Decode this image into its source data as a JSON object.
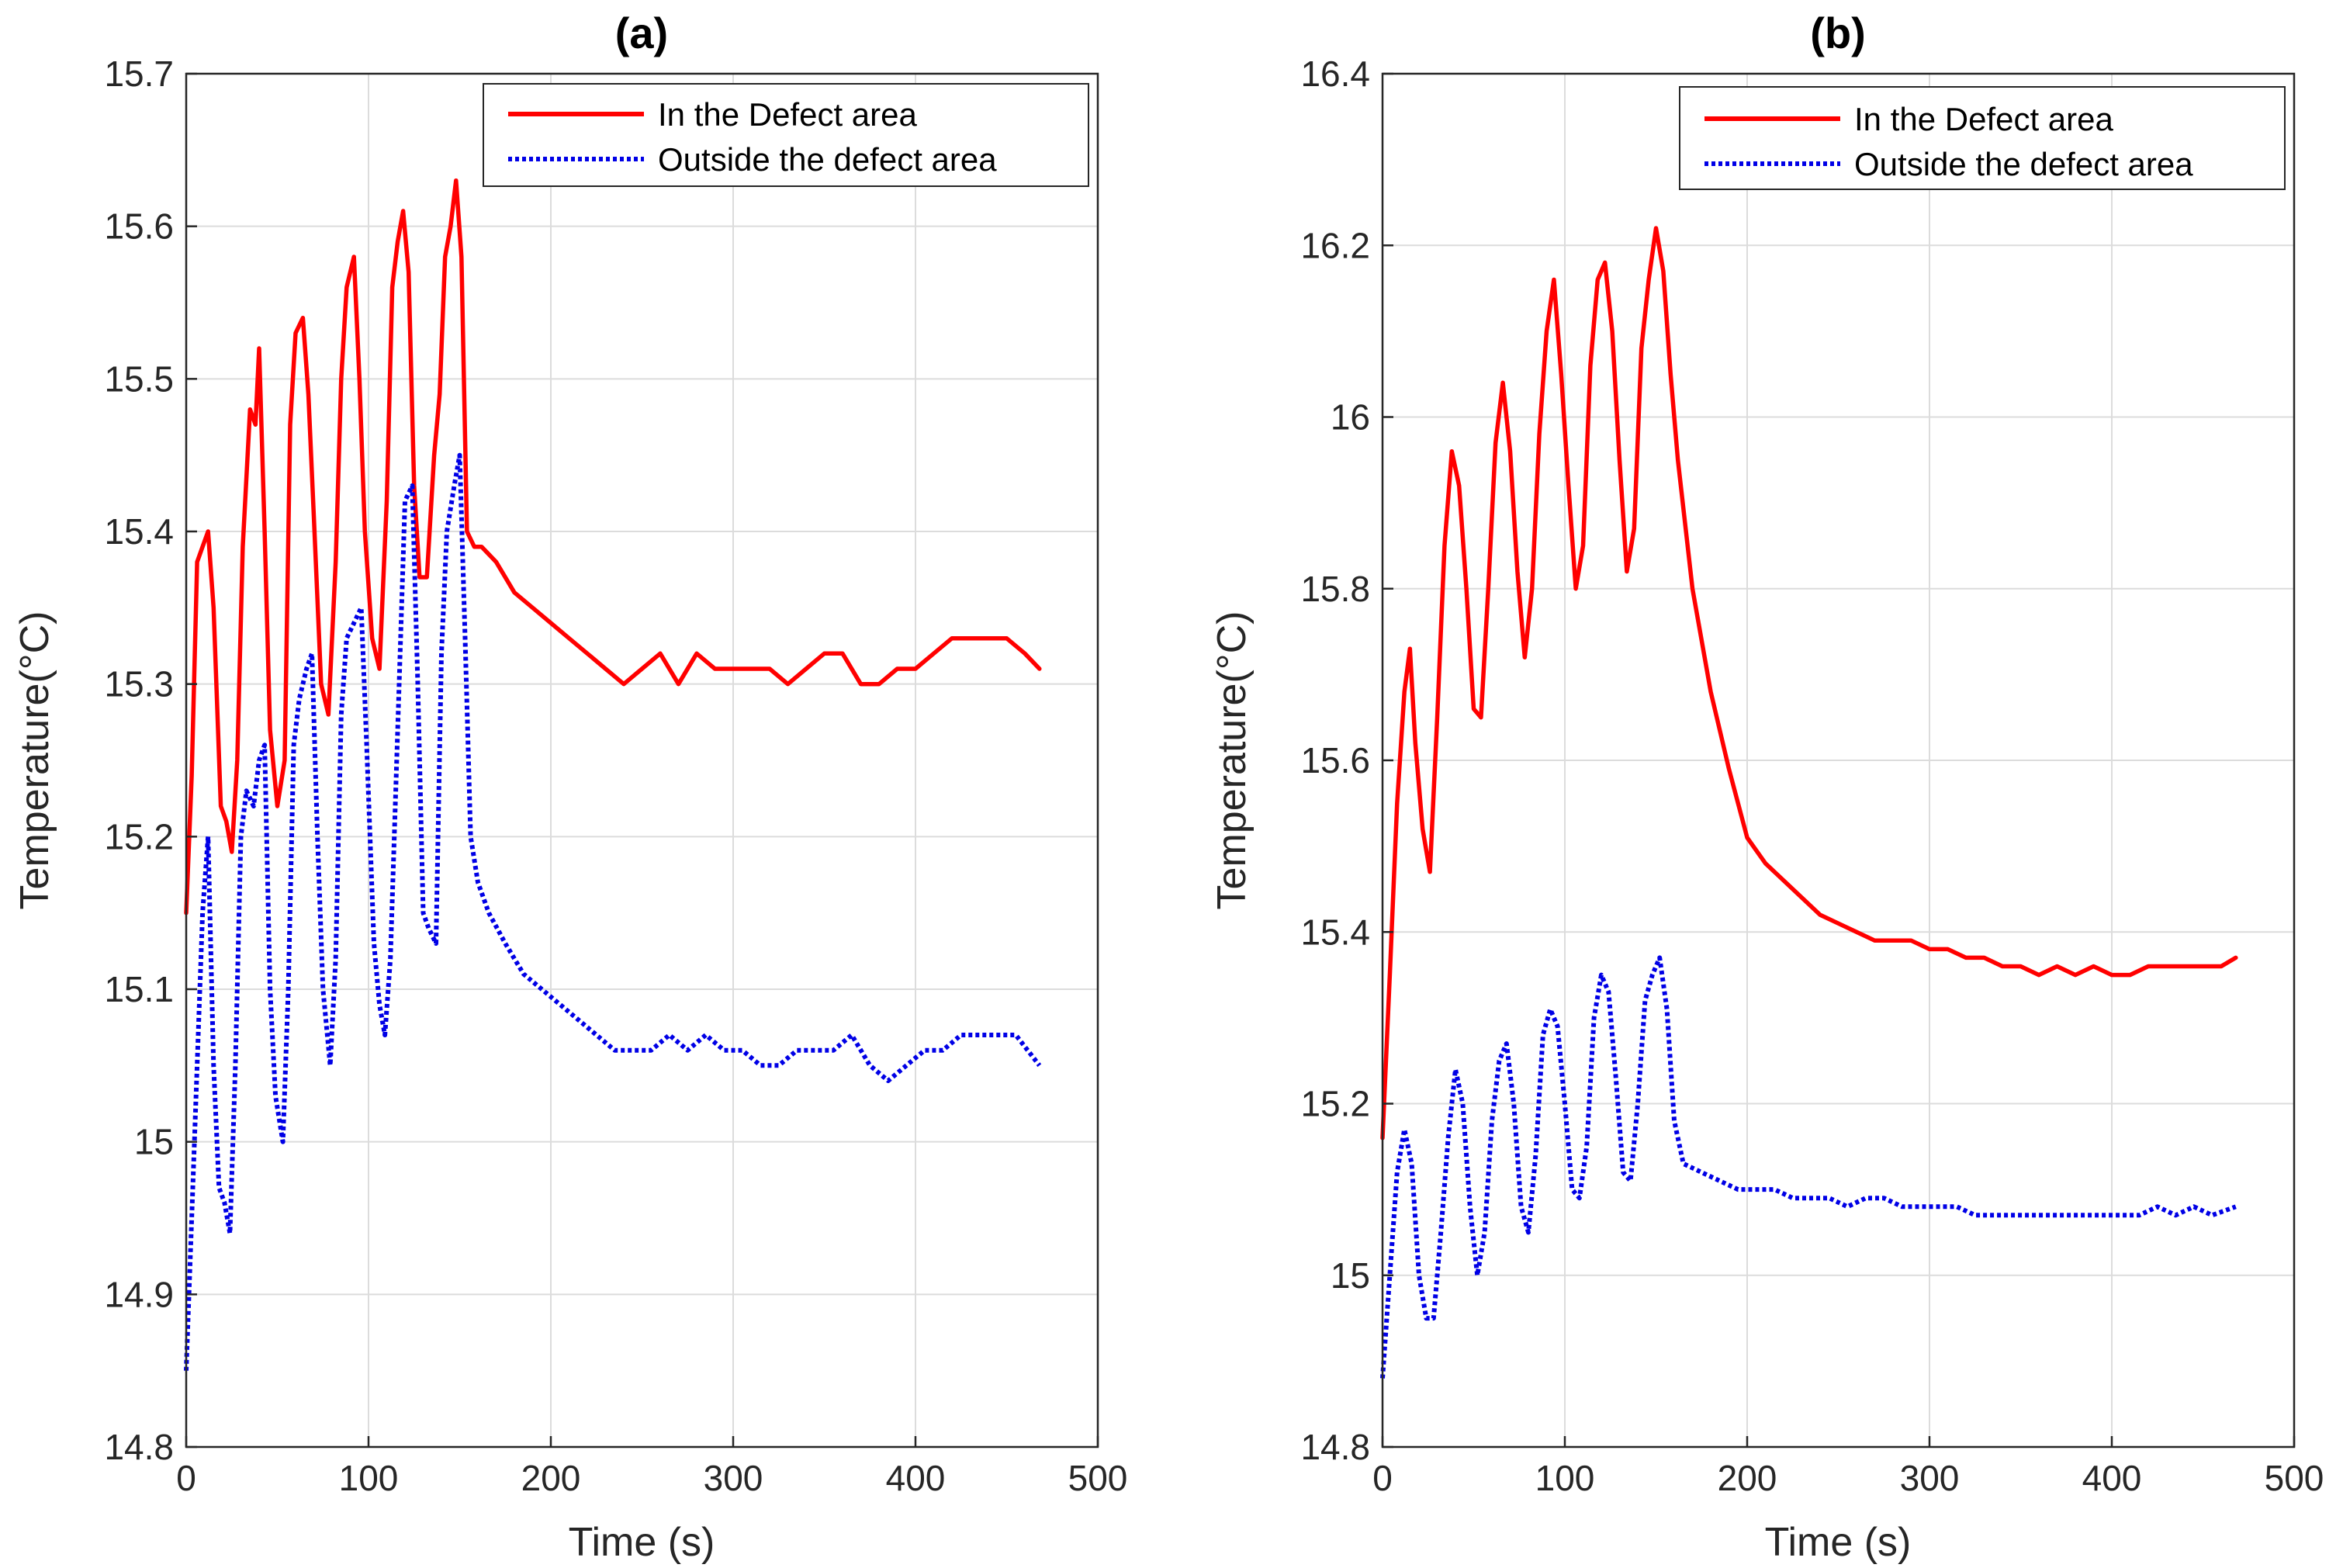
{
  "chart_data": [
    {
      "type": "line",
      "title": "(a)",
      "xlabel": "Time (s)",
      "ylabel": "Temperature(°C)",
      "xlim": [
        0,
        500
      ],
      "ylim": [
        14.8,
        15.7
      ],
      "xticks": [
        "0",
        "100",
        "200",
        "300",
        "400",
        "500"
      ],
      "yticks": [
        "14.8",
        "14.9",
        "15",
        "15.1",
        "15.2",
        "15.3",
        "15.4",
        "15.5",
        "15.6",
        "15.7"
      ],
      "grid": true,
      "legend_position": "top-right",
      "series": [
        {
          "name": "In the Defect area",
          "color": "#ff0000",
          "style": "solid",
          "x": [
            0,
            3,
            6,
            9,
            12,
            15,
            19,
            22,
            25,
            28,
            31,
            35,
            38,
            40,
            43,
            46,
            50,
            54,
            57,
            60,
            64,
            67,
            70,
            74,
            78,
            82,
            85,
            88,
            92,
            95,
            98,
            102,
            106,
            110,
            113,
            116,
            119,
            122,
            125,
            128,
            132,
            136,
            139,
            142,
            145,
            148,
            151,
            154,
            158,
            162,
            170,
            180,
            190,
            200,
            210,
            220,
            230,
            240,
            250,
            260,
            270,
            280,
            290,
            300,
            310,
            320,
            330,
            340,
            350,
            360,
            370,
            380,
            390,
            400,
            410,
            420,
            430,
            440,
            450,
            460,
            468
          ],
          "y": [
            15.15,
            15.24,
            15.38,
            15.39,
            15.4,
            15.35,
            15.22,
            15.21,
            15.19,
            15.25,
            15.39,
            15.48,
            15.47,
            15.52,
            15.4,
            15.27,
            15.22,
            15.25,
            15.47,
            15.53,
            15.54,
            15.49,
            15.41,
            15.3,
            15.28,
            15.38,
            15.5,
            15.56,
            15.58,
            15.5,
            15.4,
            15.33,
            15.31,
            15.42,
            15.56,
            15.59,
            15.61,
            15.57,
            15.43,
            15.37,
            15.37,
            15.45,
            15.49,
            15.58,
            15.6,
            15.63,
            15.58,
            15.4,
            15.39,
            15.39,
            15.38,
            15.36,
            15.35,
            15.34,
            15.33,
            15.32,
            15.31,
            15.3,
            15.31,
            15.32,
            15.3,
            15.32,
            15.31,
            15.31,
            15.31,
            15.31,
            15.3,
            15.31,
            15.32,
            15.32,
            15.3,
            15.3,
            15.31,
            15.31,
            15.32,
            15.33,
            15.33,
            15.33,
            15.33,
            15.32,
            15.31
          ]
        },
        {
          "name": "Outside the defect area",
          "color": "#0000e6",
          "style": "dotted",
          "x": [
            0,
            3,
            6,
            9,
            12,
            15,
            18,
            21,
            24,
            27,
            30,
            33,
            37,
            40,
            43,
            46,
            49,
            53,
            56,
            59,
            62,
            66,
            69,
            72,
            75,
            79,
            82,
            85,
            88,
            92,
            96,
            99,
            103,
            106,
            109,
            112,
            116,
            120,
            124,
            127,
            130,
            133,
            137,
            140,
            143,
            147,
            150,
            153,
            156,
            160,
            166,
            175,
            185,
            195,
            205,
            215,
            225,
            235,
            245,
            255,
            265,
            275,
            285,
            295,
            305,
            315,
            325,
            335,
            345,
            355,
            365,
            375,
            385,
            395,
            405,
            415,
            425,
            435,
            445,
            455,
            468
          ],
          "y": [
            14.85,
            14.95,
            15.05,
            15.15,
            15.2,
            15.05,
            14.97,
            14.96,
            14.94,
            15.05,
            15.2,
            15.23,
            15.22,
            15.25,
            15.26,
            15.1,
            15.03,
            15.0,
            15.1,
            15.26,
            15.29,
            15.31,
            15.32,
            15.2,
            15.1,
            15.05,
            15.12,
            15.28,
            15.33,
            15.34,
            15.35,
            15.26,
            15.13,
            15.09,
            15.07,
            15.12,
            15.27,
            15.42,
            15.43,
            15.3,
            15.15,
            15.14,
            15.13,
            15.32,
            15.4,
            15.43,
            15.45,
            15.33,
            15.2,
            15.17,
            15.15,
            15.13,
            15.11,
            15.1,
            15.09,
            15.08,
            15.07,
            15.06,
            15.06,
            15.06,
            15.07,
            15.06,
            15.07,
            15.06,
            15.06,
            15.05,
            15.05,
            15.06,
            15.06,
            15.06,
            15.07,
            15.05,
            15.04,
            15.05,
            15.06,
            15.06,
            15.07,
            15.07,
            15.07,
            15.07,
            15.05
          ]
        }
      ]
    },
    {
      "type": "line",
      "title": "(b)",
      "xlabel": "Time (s)",
      "ylabel": "Temperature(°C)",
      "xlim": [
        0,
        500
      ],
      "ylim": [
        14.8,
        16.4
      ],
      "xticks": [
        "0",
        "100",
        "200",
        "300",
        "400",
        "500"
      ],
      "yticks": [
        "14.8",
        "15",
        "15.2",
        "15.4",
        "15.6",
        "15.8",
        "16",
        "16.2",
        "16.4"
      ],
      "grid": true,
      "legend_position": "top-right",
      "series": [
        {
          "name": "In the Defect area",
          "color": "#ff0000",
          "style": "solid",
          "x": [
            0,
            4,
            8,
            12,
            15,
            18,
            22,
            26,
            30,
            34,
            38,
            42,
            46,
            50,
            54,
            58,
            62,
            66,
            70,
            74,
            78,
            82,
            86,
            90,
            94,
            98,
            102,
            106,
            110,
            114,
            118,
            122,
            126,
            130,
            134,
            138,
            142,
            146,
            150,
            154,
            158,
            162,
            170,
            180,
            190,
            200,
            210,
            220,
            230,
            240,
            250,
            260,
            270,
            280,
            290,
            300,
            310,
            320,
            330,
            340,
            350,
            360,
            370,
            380,
            390,
            400,
            410,
            420,
            430,
            440,
            450,
            460,
            468
          ],
          "y": [
            15.16,
            15.35,
            15.55,
            15.68,
            15.73,
            15.62,
            15.52,
            15.47,
            15.65,
            15.85,
            15.96,
            15.92,
            15.8,
            15.66,
            15.65,
            15.8,
            15.97,
            16.04,
            15.96,
            15.82,
            15.72,
            15.8,
            15.98,
            16.1,
            16.16,
            16.05,
            15.92,
            15.8,
            15.85,
            16.06,
            16.16,
            16.18,
            16.1,
            15.95,
            15.82,
            15.87,
            16.08,
            16.16,
            16.22,
            16.17,
            16.05,
            15.95,
            15.8,
            15.68,
            15.59,
            15.51,
            15.48,
            15.46,
            15.44,
            15.42,
            15.41,
            15.4,
            15.39,
            15.39,
            15.39,
            15.38,
            15.38,
            15.37,
            15.37,
            15.36,
            15.36,
            15.35,
            15.36,
            15.35,
            15.36,
            15.35,
            15.35,
            15.36,
            15.36,
            15.36,
            15.36,
            15.36,
            15.37
          ]
        },
        {
          "name": "Outside the defect area",
          "color": "#0000e6",
          "style": "dotted",
          "x": [
            0,
            4,
            8,
            12,
            16,
            20,
            24,
            28,
            32,
            36,
            40,
            44,
            48,
            52,
            56,
            60,
            64,
            68,
            72,
            76,
            80,
            84,
            88,
            92,
            96,
            100,
            104,
            108,
            112,
            116,
            120,
            124,
            128,
            132,
            136,
            140,
            144,
            148,
            152,
            156,
            160,
            165,
            175,
            185,
            195,
            205,
            215,
            225,
            235,
            245,
            255,
            265,
            275,
            285,
            295,
            305,
            315,
            325,
            335,
            345,
            355,
            365,
            375,
            385,
            395,
            405,
            415,
            425,
            435,
            445,
            455,
            468
          ],
          "y": [
            14.88,
            15.0,
            15.12,
            15.17,
            15.13,
            15.0,
            14.95,
            14.95,
            15.05,
            15.16,
            15.24,
            15.2,
            15.08,
            15.0,
            15.05,
            15.18,
            15.25,
            15.27,
            15.2,
            15.08,
            15.05,
            15.14,
            15.28,
            15.31,
            15.29,
            15.2,
            15.1,
            15.09,
            15.15,
            15.3,
            15.35,
            15.33,
            15.23,
            15.12,
            15.11,
            15.2,
            15.32,
            15.35,
            15.37,
            15.31,
            15.18,
            15.13,
            15.12,
            15.11,
            15.1,
            15.1,
            15.1,
            15.09,
            15.09,
            15.09,
            15.08,
            15.09,
            15.09,
            15.08,
            15.08,
            15.08,
            15.08,
            15.07,
            15.07,
            15.07,
            15.07,
            15.07,
            15.07,
            15.07,
            15.07,
            15.07,
            15.07,
            15.08,
            15.07,
            15.08,
            15.07,
            15.08
          ]
        }
      ]
    }
  ]
}
